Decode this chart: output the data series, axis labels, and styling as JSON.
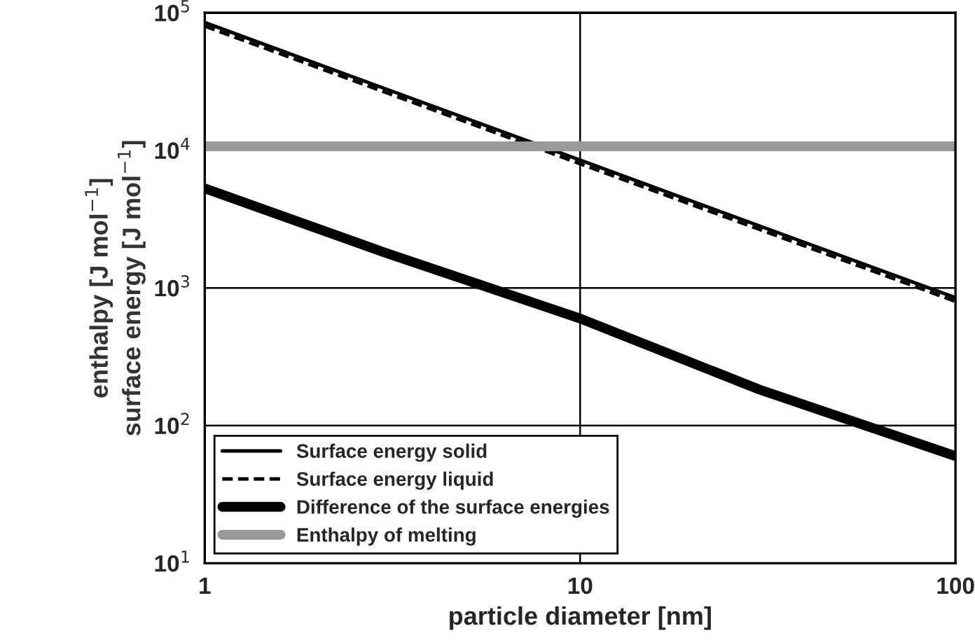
{
  "chart_data": {
    "type": "line",
    "xlabel": "particle diameter [nm]",
    "ylabel": "enthalpy [J mol$^{−1}$]\nsurface energy [J mol$^{−1}$]",
    "log": "xy",
    "xlim": [
      1,
      100
    ],
    "ylim": [
      10,
      100000
    ],
    "xticks": [
      1,
      10,
      100
    ],
    "yticks": [
      {
        "value": 10,
        "label": "10$^{1}$"
      },
      {
        "value": 100,
        "label": "10$^{2}$"
      },
      {
        "value": 1000,
        "label": "10$^{3}$"
      },
      {
        "value": 10000,
        "label": "10$^{4}$"
      },
      {
        "value": 100000,
        "label": "10$^{5}$"
      }
    ],
    "ref_lines": [
      {
        "axis": "x",
        "value": 10,
        "color": "#000000"
      },
      {
        "axis": "y",
        "value": 100,
        "color": "#000000"
      },
      {
        "axis": "y",
        "value": 1000,
        "color": "#000000"
      }
    ],
    "legend": "bottom left",
    "marker": "none",
    "series": [
      {
        "name": "Surface energy solid",
        "color": "#000000",
        "line_style": "solid",
        "x": [
          1,
          3,
          10,
          30,
          100
        ],
        "values": [
          85000,
          28300,
          8500,
          2830,
          850
        ]
      },
      {
        "name": "Surface energy liquid",
        "color": "#000000",
        "line_style": "dashed",
        "x": [
          1,
          3,
          10,
          30,
          100
        ],
        "values": [
          80000,
          26700,
          8000,
          2670,
          800
        ]
      },
      {
        "name": "Difference of the surface energies",
        "color": "#000000",
        "line_style": "solid",
        "x": [
          1,
          3,
          10,
          30,
          100
        ],
        "values": [
          5300,
          1820,
          600,
          183,
          60
        ]
      },
      {
        "name": "Enthalpy of melting",
        "color": "#999999",
        "line_style": "solid",
        "x": [
          1,
          3,
          10,
          30,
          100
        ],
        "values": [
          10700,
          10700,
          10700,
          10700,
          10700
        ]
      }
    ]
  }
}
